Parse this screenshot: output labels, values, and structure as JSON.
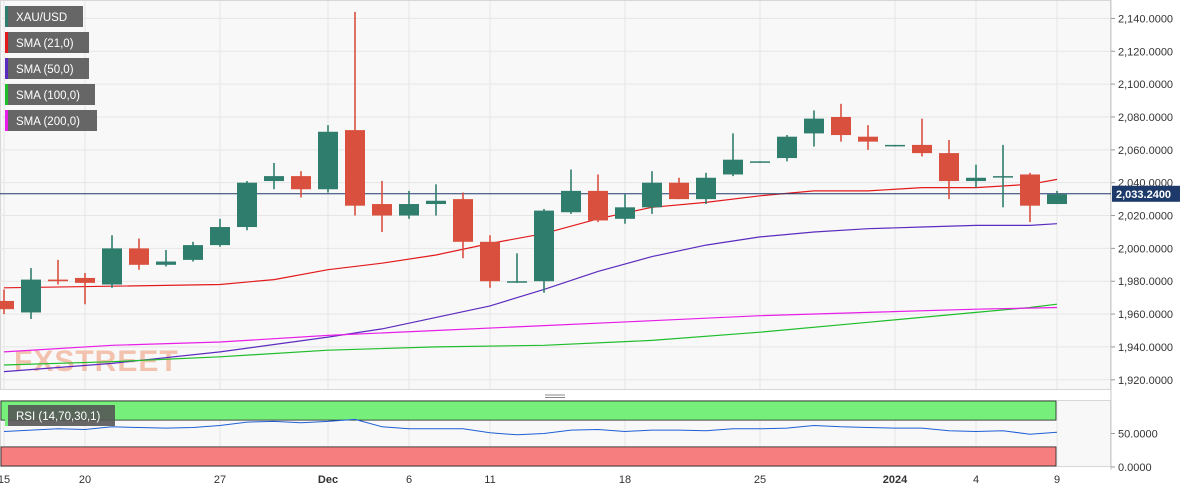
{
  "chart_data": [
    {
      "type": "candlestick",
      "symbol": "XAU/USD",
      "last_price": 2033.24,
      "last_price_label": "2,033.2400",
      "ylim": [
        1915,
        2150
      ],
      "y_ticks": [
        1920,
        1940,
        1960,
        1980,
        2000,
        2020,
        2040,
        2060,
        2080,
        2100,
        2120,
        2140
      ],
      "y_tick_labels": [
        "1,920.0000",
        "1,940.0000",
        "1,960.0000",
        "1,980.0000",
        "2,000.0000",
        "2,020.0000",
        "2,040.0000",
        "2,060.0000",
        "2,080.0000",
        "2,100.0000",
        "2,120.0000",
        "2,140.0000"
      ],
      "x_ticks": [
        {
          "index": 0,
          "label": "15",
          "bold": false
        },
        {
          "index": 3,
          "label": "20",
          "bold": false
        },
        {
          "index": 8,
          "label": "27",
          "bold": false
        },
        {
          "index": 12,
          "label": "Dec",
          "bold": true
        },
        {
          "index": 15,
          "label": "6",
          "bold": false
        },
        {
          "index": 18,
          "label": "11",
          "bold": false
        },
        {
          "index": 23,
          "label": "18",
          "bold": false
        },
        {
          "index": 28,
          "label": "25",
          "bold": false
        },
        {
          "index": 33,
          "label": "2024",
          "bold": true
        },
        {
          "index": 36,
          "label": "4",
          "bold": false
        },
        {
          "index": 39,
          "label": "9",
          "bold": false
        }
      ],
      "candles": [
        {
          "o": 1968,
          "h": 1975,
          "l": 1960,
          "c": 1963
        },
        {
          "o": 1961,
          "h": 1988,
          "l": 1957,
          "c": 1981
        },
        {
          "o": 1981,
          "h": 1993,
          "l": 1978,
          "c": 1980
        },
        {
          "o": 1982,
          "h": 1985,
          "l": 1966,
          "c": 1979
        },
        {
          "o": 1978,
          "h": 2008,
          "l": 1976,
          "c": 2000
        },
        {
          "o": 2000,
          "h": 2006,
          "l": 1987,
          "c": 1990
        },
        {
          "o": 1990,
          "h": 1999,
          "l": 1989,
          "c": 1992
        },
        {
          "o": 1993,
          "h": 2004,
          "l": 1992,
          "c": 2002
        },
        {
          "o": 2002,
          "h": 2018,
          "l": 2001,
          "c": 2013
        },
        {
          "o": 2013,
          "h": 2041,
          "l": 2011,
          "c": 2040
        },
        {
          "o": 2041,
          "h": 2052,
          "l": 2036,
          "c": 2044
        },
        {
          "o": 2044,
          "h": 2047,
          "l": 2031,
          "c": 2036
        },
        {
          "o": 2036,
          "h": 2075,
          "l": 2034,
          "c": 2071
        },
        {
          "o": 2072,
          "h": 2144,
          "l": 2020,
          "c": 2026
        },
        {
          "o": 2027,
          "h": 2041,
          "l": 2010,
          "c": 2020
        },
        {
          "o": 2020,
          "h": 2035,
          "l": 2018,
          "c": 2027
        },
        {
          "o": 2027,
          "h": 2039,
          "l": 2020,
          "c": 2029
        },
        {
          "o": 2030,
          "h": 2034,
          "l": 1994,
          "c": 2004
        },
        {
          "o": 2004,
          "h": 2008,
          "l": 1976,
          "c": 1980
        },
        {
          "o": 1980,
          "h": 1997,
          "l": 1979,
          "c": 1980
        },
        {
          "o": 1980,
          "h": 2024,
          "l": 1973,
          "c": 2023
        },
        {
          "o": 2022,
          "h": 2048,
          "l": 2021,
          "c": 2035
        },
        {
          "o": 2035,
          "h": 2045,
          "l": 2016,
          "c": 2017
        },
        {
          "o": 2018,
          "h": 2033,
          "l": 2015,
          "c": 2025
        },
        {
          "o": 2025,
          "h": 2047,
          "l": 2021,
          "c": 2040
        },
        {
          "o": 2040,
          "h": 2043,
          "l": 2030,
          "c": 2030
        },
        {
          "o": 2030,
          "h": 2046,
          "l": 2027,
          "c": 2043
        },
        {
          "o": 2045,
          "h": 2070,
          "l": 2044,
          "c": 2054
        },
        {
          "o": 2053,
          "h": 2053,
          "l": 2052,
          "c": 2053
        },
        {
          "o": 2055,
          "h": 2069,
          "l": 2053,
          "c": 2068
        },
        {
          "o": 2070,
          "h": 2084,
          "l": 2062,
          "c": 2079
        },
        {
          "o": 2080,
          "h": 2088,
          "l": 2065,
          "c": 2069
        },
        {
          "o": 2068,
          "h": 2075,
          "l": 2060,
          "c": 2065
        },
        {
          "o": 2063,
          "h": 2063,
          "l": 2062,
          "c": 2063
        },
        {
          "o": 2063,
          "h": 2079,
          "l": 2056,
          "c": 2058
        },
        {
          "o": 2058,
          "h": 2066,
          "l": 2030,
          "c": 2041
        },
        {
          "o": 2041,
          "h": 2051,
          "l": 2037,
          "c": 2043
        },
        {
          "o": 2044,
          "h": 2063,
          "l": 2025,
          "c": 2044
        },
        {
          "o": 2045,
          "h": 2046,
          "l": 2016,
          "c": 2026
        },
        {
          "o": 2027,
          "h": 2035,
          "l": 2027,
          "c": 2033
        }
      ],
      "sma": [
        {
          "label": "SMA (21,0)",
          "color": "#e31a1c",
          "x": [
            0,
            4,
            8,
            10,
            12,
            14,
            16,
            18,
            20,
            22,
            24,
            26,
            28,
            30,
            32,
            34,
            36,
            38,
            39
          ],
          "values": [
            1976,
            1977,
            1978,
            1981,
            1987,
            1991,
            1996,
            2003,
            2009,
            2018,
            2025,
            2028,
            2032,
            2035,
            2035,
            2037,
            2037,
            2039,
            2042
          ]
        },
        {
          "label": "SMA (50,0)",
          "color": "#5b2bbf",
          "x": [
            0,
            4,
            8,
            12,
            14,
            16,
            18,
            20,
            22,
            24,
            26,
            28,
            30,
            32,
            34,
            36,
            38,
            39
          ],
          "values": [
            1925,
            1930,
            1937,
            1946,
            1951,
            1958,
            1965,
            1975,
            1986,
            1995,
            2002,
            2007,
            2010,
            2012,
            2013,
            2014,
            2014,
            2015
          ]
        },
        {
          "label": "SMA (100,0)",
          "color": "#1fbd2a",
          "x": [
            0,
            4,
            8,
            12,
            16,
            20,
            24,
            28,
            32,
            36,
            38,
            39
          ],
          "values": [
            1929,
            1931,
            1934,
            1938,
            1940,
            1941,
            1944,
            1949,
            1955,
            1961,
            1964,
            1966
          ]
        },
        {
          "label": "SMA (200,0)",
          "color": "#e81ee8",
          "x": [
            0,
            4,
            8,
            12,
            16,
            20,
            24,
            28,
            32,
            36,
            39
          ],
          "values": [
            1937,
            1941,
            1943,
            1947,
            1950,
            1953,
            1956,
            1959,
            1961,
            1963,
            1964
          ]
        }
      ]
    },
    {
      "type": "line",
      "label": "RSI (14,70,30,1)",
      "ylim": [
        0,
        100
      ],
      "overbought": 70,
      "oversold": 30,
      "y_ticks": [
        0,
        50
      ],
      "y_tick_labels": [
        "0.0000",
        "50.0000"
      ],
      "color": "#1f5fd6",
      "values": [
        53,
        55,
        57,
        56,
        60,
        59,
        58,
        59,
        62,
        67,
        68,
        66,
        68,
        71,
        60,
        57,
        57,
        57,
        51,
        48,
        50,
        55,
        56,
        53,
        55,
        55,
        54,
        57,
        57,
        58,
        62,
        60,
        59,
        58,
        58,
        54,
        53,
        54,
        49,
        52
      ]
    }
  ],
  "watermark": {
    "text": "FXSTREET"
  }
}
